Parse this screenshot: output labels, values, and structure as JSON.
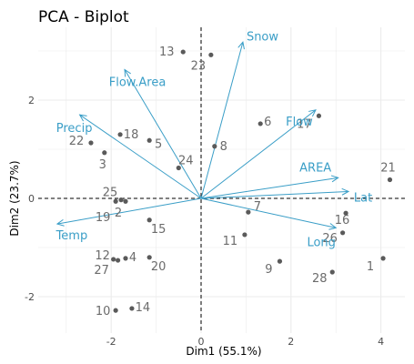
{
  "chart_data": {
    "type": "scatter",
    "title": "PCA - Biplot",
    "xlabel": "Dim1 (55.1%)",
    "ylabel": "Dim2 (23.7%)",
    "xlim": [
      -3.2,
      4.6
    ],
    "ylim": [
      -2.6,
      3.1
    ],
    "xticks": [
      -2,
      0,
      2,
      4
    ],
    "yticks": [
      -2,
      0,
      2
    ],
    "grid": true,
    "colors": {
      "arrow": "#3a9ec7",
      "point": "#5a5a5a",
      "label": "#6b6b6b",
      "grid": "#ebebeb"
    },
    "variables": [
      {
        "name": "Snow",
        "x": 0.93,
        "y": 3.18
      },
      {
        "name": "Flow.Area",
        "x": -1.7,
        "y": 2.62
      },
      {
        "name": "Precip",
        "x": -2.7,
        "y": 1.7
      },
      {
        "name": "Flow",
        "x": 2.55,
        "y": 1.8
      },
      {
        "name": "AREA",
        "x": 3.05,
        "y": 0.42
      },
      {
        "name": "Lat",
        "x": 3.28,
        "y": 0.14
      },
      {
        "name": "Long",
        "x": 3.0,
        "y": -0.6
      },
      {
        "name": "Temp",
        "x": -3.2,
        "y": -0.52
      }
    ],
    "points": [
      {
        "label": "1",
        "x": 4.05,
        "y": -1.22
      },
      {
        "label": "2",
        "x": -1.68,
        "y": -0.06
      },
      {
        "label": "3",
        "x": -2.15,
        "y": 0.93
      },
      {
        "label": "4",
        "x": -1.68,
        "y": -1.22
      },
      {
        "label": "5",
        "x": -1.15,
        "y": 1.18
      },
      {
        "label": "6",
        "x": 1.32,
        "y": 1.52
      },
      {
        "label": "7",
        "x": 1.05,
        "y": -0.28
      },
      {
        "label": "8",
        "x": 0.3,
        "y": 1.06
      },
      {
        "label": "9",
        "x": 1.75,
        "y": -1.28
      },
      {
        "label": "10",
        "x": -1.9,
        "y": -2.28
      },
      {
        "label": "11",
        "x": 0.97,
        "y": -0.74
      },
      {
        "label": "12",
        "x": -1.95,
        "y": -1.24
      },
      {
        "label": "13",
        "x": -0.4,
        "y": 2.98
      },
      {
        "label": "14",
        "x": -1.54,
        "y": -2.24
      },
      {
        "label": "15",
        "x": -1.15,
        "y": -0.44
      },
      {
        "label": "16",
        "x": 3.22,
        "y": -0.3
      },
      {
        "label": "17",
        "x": 2.62,
        "y": 1.68
      },
      {
        "label": "18",
        "x": -1.8,
        "y": 1.3
      },
      {
        "label": "19",
        "x": -1.9,
        "y": -0.06
      },
      {
        "label": "20",
        "x": -1.15,
        "y": -1.2
      },
      {
        "label": "21",
        "x": 4.2,
        "y": 0.38
      },
      {
        "label": "22",
        "x": -2.45,
        "y": 1.13
      },
      {
        "label": "23",
        "x": 0.22,
        "y": 2.92
      },
      {
        "label": "24",
        "x": -0.5,
        "y": 0.62
      },
      {
        "label": "25",
        "x": -1.78,
        "y": -0.03
      },
      {
        "label": "26",
        "x": 3.15,
        "y": -0.7
      },
      {
        "label": "27",
        "x": -1.85,
        "y": -1.26
      },
      {
        "label": "28",
        "x": 2.92,
        "y": -1.5
      }
    ]
  }
}
